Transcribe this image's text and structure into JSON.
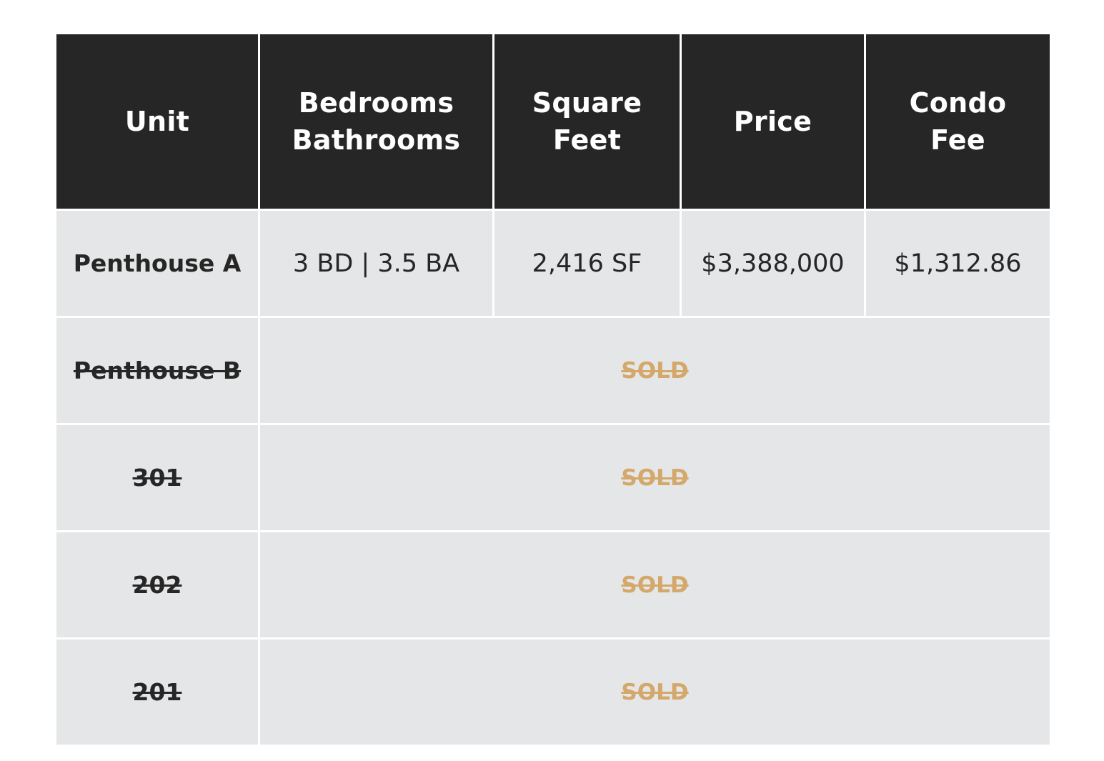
{
  "headers": {
    "unit": "Unit",
    "bedrooms_line1": "Bedrooms",
    "bedrooms_line2": "Bathrooms",
    "sqft_line1": "Square",
    "sqft_line2": "Feet",
    "price": "Price",
    "condo_line1": "Condo",
    "condo_line2": "Fee"
  },
  "available_row": {
    "unit": "Penthouse A",
    "bed_bath": "3 BD | 3.5 BA",
    "sqft": "2,416 SF",
    "price": "$3,388,000",
    "condo_fee": "$1,312.86"
  },
  "sold_rows": [
    {
      "unit": "Penthouse B",
      "status": "SOLD"
    },
    {
      "unit": "301",
      "status": "SOLD"
    },
    {
      "unit": "202",
      "status": "SOLD"
    },
    {
      "unit": "201",
      "status": "SOLD"
    }
  ],
  "colors": {
    "header_bg": "#262626",
    "header_text": "#ffffff",
    "row_bg": "#e5e6e7",
    "body_text": "#262626",
    "sold_text": "#d3a86a",
    "grid_lines": "#ffffff"
  }
}
